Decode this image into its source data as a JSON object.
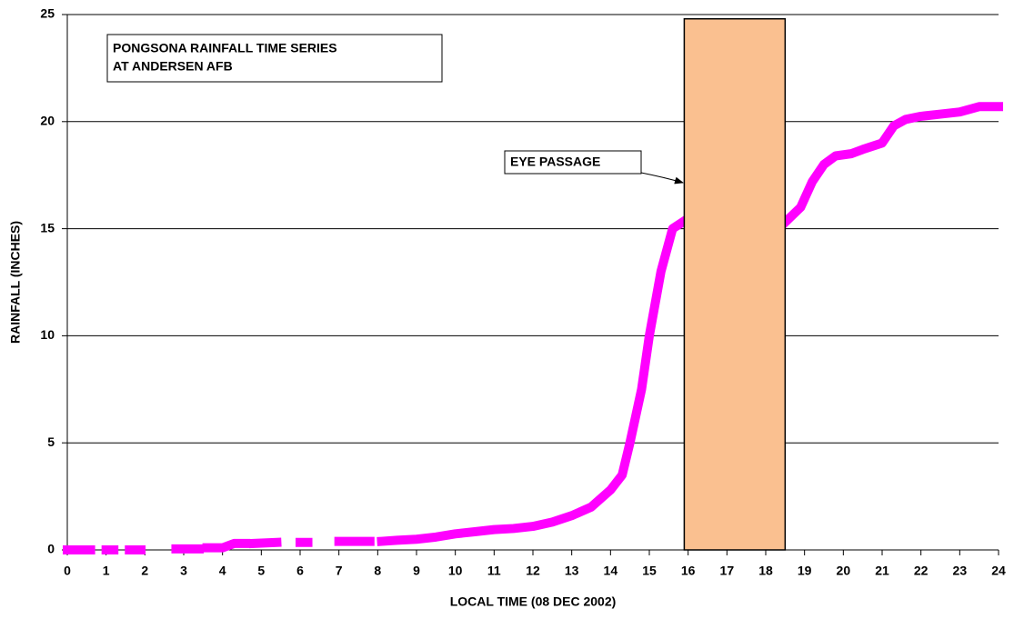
{
  "chart_data": {
    "type": "line",
    "title": [
      "PONGSONA RAINFALL TIME SERIES",
      "AT ANDERSEN AFB"
    ],
    "xlabel": "LOCAL TIME (08 DEC 2002)",
    "ylabel": "RAINFALL (INCHES)",
    "annotation": "EYE PASSAGE",
    "eye_band": {
      "x": [
        15.9,
        18.5
      ],
      "y": [
        0,
        24.8
      ],
      "color": "#fac090"
    },
    "x": [
      0,
      0.6,
      0.8,
      1.0,
      1.2,
      1.4,
      1.6,
      1.9,
      2.3,
      2.8,
      3.0,
      3.1,
      3.2,
      3.4,
      3.5,
      3.6,
      4.0,
      4.3,
      4.6,
      4.7,
      4.8,
      5.4,
      5.7,
      6.0,
      6.2,
      6.6,
      7.0,
      7.8,
      7.9,
      8.1,
      8.5,
      9,
      9.5,
      10,
      10.5,
      11,
      11.5,
      12,
      12.5,
      13,
      13.5,
      14,
      14.3,
      14.5,
      14.8,
      15,
      15.3,
      15.6,
      15.85,
      17,
      18.5,
      18.9,
      19.2,
      19.5,
      19.8,
      20.2,
      20.5,
      21,
      21.3,
      21.6,
      22,
      22.5,
      23,
      23.3,
      23.5,
      24
    ],
    "series": [
      {
        "color": "#ff00ff",
        "values": [
          0,
          0,
          null,
          0,
          0,
          null,
          0,
          0,
          null,
          0.05,
          0.05,
          null,
          0.05,
          0.05,
          null,
          0.1,
          0.1,
          0.3,
          0.3,
          null,
          0.3,
          0.35,
          null,
          0.35,
          0.35,
          null,
          0.4,
          0.4,
          null,
          0.4,
          0.45,
          0.5,
          0.6,
          0.75,
          0.85,
          0.95,
          1.0,
          1.1,
          1.3,
          1.6,
          2.0,
          2.8,
          3.5,
          5,
          7.5,
          10,
          13,
          15,
          15.3,
          null,
          15.3,
          16,
          17.2,
          18,
          18.4,
          18.5,
          18.7,
          19,
          19.8,
          20.1,
          20.25,
          20.35,
          20.45,
          20.6,
          20.7,
          20.7
        ]
      }
    ],
    "xlim": [
      0,
      24
    ],
    "xticks": [
      0,
      1,
      2,
      3,
      4,
      5,
      6,
      7,
      8,
      9,
      10,
      11,
      12,
      13,
      14,
      15,
      16,
      17,
      18,
      19,
      20,
      21,
      22,
      23,
      24
    ],
    "ylim": [
      0,
      25
    ],
    "yticks": [
      0,
      5,
      10,
      15,
      20,
      25
    ],
    "grid": true
  }
}
